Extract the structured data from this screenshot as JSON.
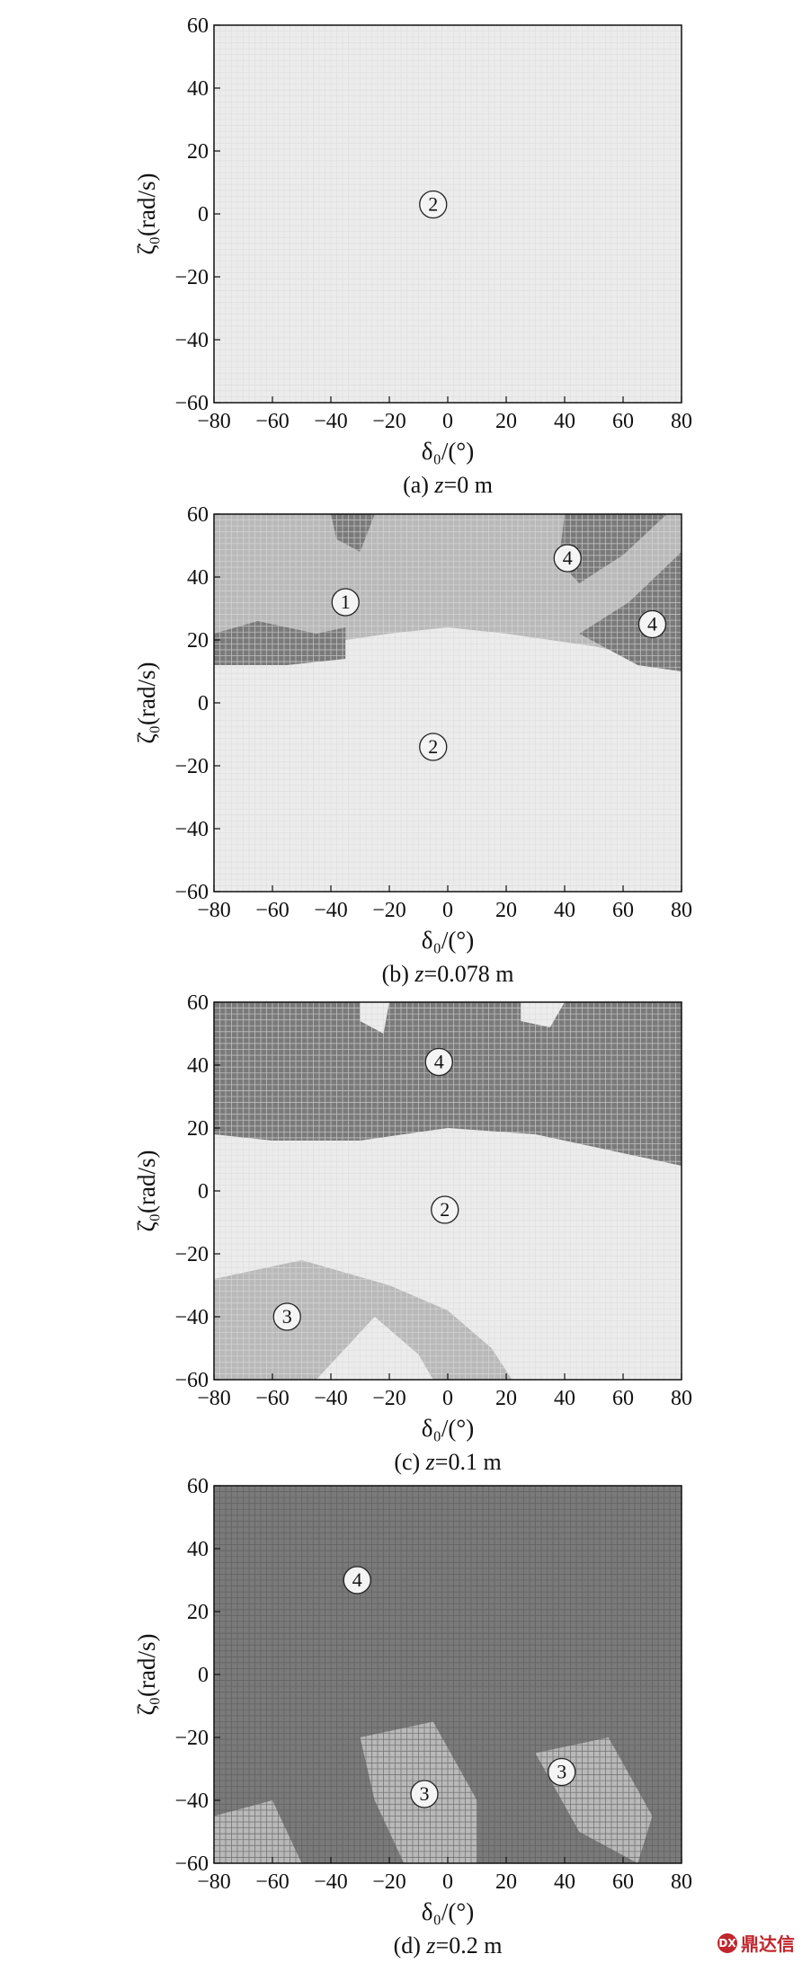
{
  "chart_data": [
    {
      "type": "heatmap",
      "caption": "(a) z=0 m",
      "caption_prefix": "(a) ",
      "caption_var": "z",
      "caption_value": "=0 m",
      "xlabel": "δ₀/(°)",
      "ylabel": "ζ̇₀(rad/s)",
      "xlim": [
        -80,
        80
      ],
      "ylim": [
        -60,
        60
      ],
      "xticks": [
        "−80",
        "−60",
        "−40",
        "−20",
        "0",
        "20",
        "40",
        "60",
        "80"
      ],
      "yticks": [
        "60",
        "40",
        "20",
        "0",
        "−20",
        "−40",
        "−60"
      ],
      "annotations": [
        {
          "label": "2",
          "x": -5,
          "y": 3
        }
      ]
    },
    {
      "type": "heatmap",
      "caption": "(b) z=0.078 m",
      "caption_prefix": "(b) ",
      "caption_var": "z",
      "caption_value": "=0.078 m",
      "xlabel": "δ₀/(°)",
      "ylabel": "ζ̇₀(rad/s)",
      "xlim": [
        -80,
        80
      ],
      "ylim": [
        -60,
        60
      ],
      "xticks": [
        "−80",
        "−60",
        "−40",
        "−20",
        "0",
        "20",
        "40",
        "60",
        "80"
      ],
      "yticks": [
        "60",
        "40",
        "20",
        "0",
        "−20",
        "−40",
        "−60"
      ],
      "annotations": [
        {
          "label": "1",
          "x": -35,
          "y": 32
        },
        {
          "label": "4",
          "x": 41,
          "y": 46
        },
        {
          "label": "4",
          "x": 70,
          "y": 25
        },
        {
          "label": "2",
          "x": -5,
          "y": -14
        }
      ]
    },
    {
      "type": "heatmap",
      "caption": "(c) z=0.1 m",
      "caption_prefix": "(c) ",
      "caption_var": "z",
      "caption_value": "=0.1 m",
      "xlabel": "δ₀/(°)",
      "ylabel": "ζ̇₀(rad/s)",
      "xlim": [
        -80,
        80
      ],
      "ylim": [
        -60,
        60
      ],
      "xticks": [
        "−80",
        "−60",
        "−40",
        "−20",
        "0",
        "20",
        "40",
        "60",
        "80"
      ],
      "yticks": [
        "60",
        "40",
        "20",
        "0",
        "−20",
        "−40",
        "−60"
      ],
      "annotations": [
        {
          "label": "4",
          "x": -3,
          "y": 41
        },
        {
          "label": "2",
          "x": -1,
          "y": -6
        },
        {
          "label": "3",
          "x": -55,
          "y": -40
        }
      ]
    },
    {
      "type": "heatmap",
      "caption": "(d) z=0.2 m",
      "caption_prefix": "(d) ",
      "caption_var": "z",
      "caption_value": "=0.2 m",
      "xlabel": "δ₀/(°)",
      "ylabel": "ζ̇₀(rad/s)",
      "xlim": [
        -80,
        80
      ],
      "ylim": [
        -60,
        60
      ],
      "xticks": [
        "−80",
        "−60",
        "−40",
        "−20",
        "0",
        "20",
        "40",
        "60",
        "80"
      ],
      "yticks": [
        "60",
        "40",
        "20",
        "0",
        "−20",
        "−40",
        "−60"
      ],
      "annotations": [
        {
          "label": "4",
          "x": -31,
          "y": 30
        },
        {
          "label": "3",
          "x": -8,
          "y": -38
        },
        {
          "label": "3",
          "x": 39,
          "y": -31
        }
      ]
    }
  ],
  "regions": {
    "light": "#ececec",
    "mid": "#b9b9b9",
    "dark": "#7a7a7a",
    "grid_light": "#dcdcdc",
    "grid_dark": "#5a5a5a"
  },
  "watermark": {
    "text": "鼎达信",
    "logo": "DX"
  }
}
